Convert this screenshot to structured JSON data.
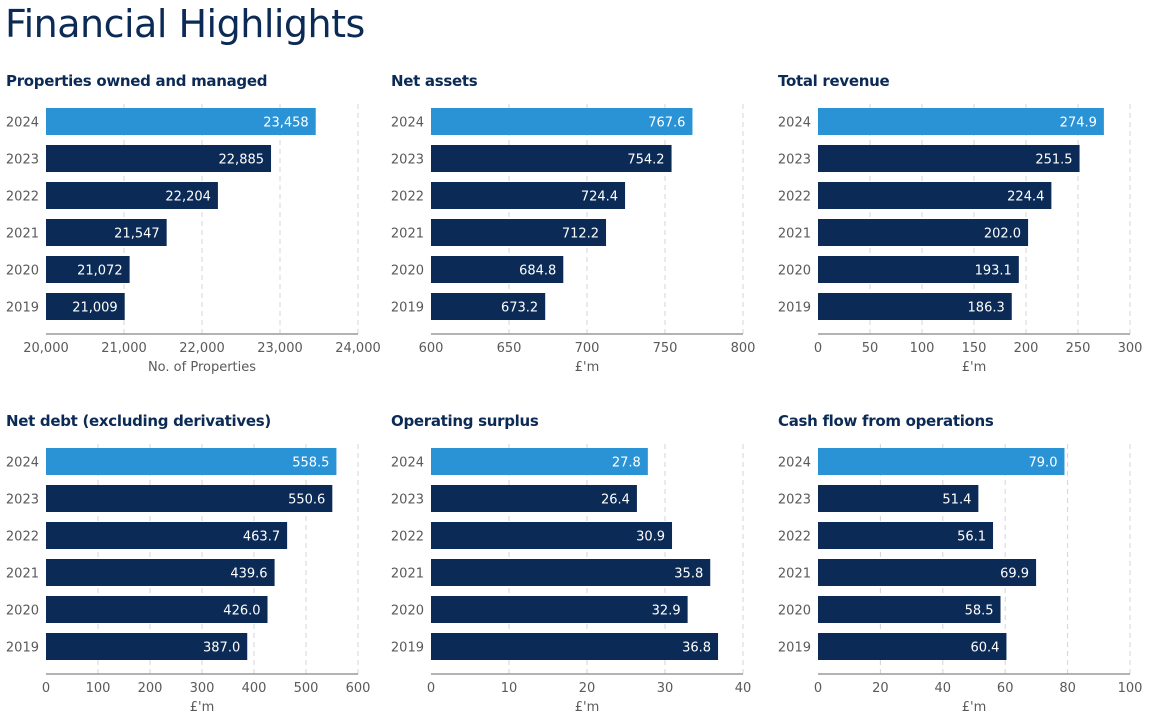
{
  "page_title": "Financial Highlights",
  "colors": {
    "highlight": "#2a93d5",
    "bar": "#0b2a55",
    "grid": "#d4d4d4",
    "axis": "#9a9a9a",
    "label": "#ffffff"
  },
  "chart_data": [
    {
      "type": "bar",
      "orientation": "horizontal",
      "title": "Properties owned and managed",
      "categories": [
        "2024",
        "2023",
        "2022",
        "2021",
        "2020",
        "2019"
      ],
      "values": [
        23458,
        22885,
        22204,
        21547,
        21072,
        21009
      ],
      "value_labels": [
        "23,458",
        "22,885",
        "22,204",
        "21,547",
        "21,072",
        "21,009"
      ],
      "xlim": [
        20000,
        24000
      ],
      "ticks": [
        20000,
        21000,
        22000,
        23000,
        24000
      ],
      "tick_labels": [
        "20,000",
        "21,000",
        "22,000",
        "23,000",
        "24,000"
      ],
      "xlabel": "No. of Properties",
      "grid": "vertical dashed",
      "highlight_category": "2024"
    },
    {
      "type": "bar",
      "orientation": "horizontal",
      "title": "Net assets",
      "categories": [
        "2024",
        "2023",
        "2022",
        "2021",
        "2020",
        "2019"
      ],
      "values": [
        767.6,
        754.2,
        724.4,
        712.2,
        684.8,
        673.2
      ],
      "value_labels": [
        "767.6",
        "754.2",
        "724.4",
        "712.2",
        "684.8",
        "673.2"
      ],
      "xlim": [
        600,
        800
      ],
      "ticks": [
        600,
        650,
        700,
        750,
        800
      ],
      "tick_labels": [
        "600",
        "650",
        "700",
        "750",
        "800"
      ],
      "xlabel": "£'m",
      "grid": "vertical dashed",
      "highlight_category": "2024"
    },
    {
      "type": "bar",
      "orientation": "horizontal",
      "title": "Total revenue",
      "categories": [
        "2024",
        "2023",
        "2022",
        "2021",
        "2020",
        "2019"
      ],
      "values": [
        274.9,
        251.5,
        224.4,
        202.0,
        193.1,
        186.3
      ],
      "value_labels": [
        "274.9",
        "251.5",
        "224.4",
        "202.0",
        "193.1",
        "186.3"
      ],
      "xlim": [
        0,
        300
      ],
      "ticks": [
        0,
        50,
        100,
        150,
        200,
        250,
        300
      ],
      "tick_labels": [
        "0",
        "50",
        "100",
        "150",
        "200",
        "250",
        "300"
      ],
      "xlabel": "£'m",
      "grid": "vertical dashed",
      "highlight_category": "2024"
    },
    {
      "type": "bar",
      "orientation": "horizontal",
      "title": "Net debt (excluding derivatives)",
      "categories": [
        "2024",
        "2023",
        "2022",
        "2021",
        "2020",
        "2019"
      ],
      "values": [
        558.5,
        550.6,
        463.7,
        439.6,
        426.0,
        387.0
      ],
      "value_labels": [
        "558.5",
        "550.6",
        "463.7",
        "439.6",
        "426.0",
        "387.0"
      ],
      "xlim": [
        0,
        600
      ],
      "ticks": [
        0,
        100,
        200,
        300,
        400,
        500,
        600
      ],
      "tick_labels": [
        "0",
        "100",
        "200",
        "300",
        "400",
        "500",
        "600"
      ],
      "xlabel": "£'m",
      "grid": "vertical dashed",
      "highlight_category": "2024"
    },
    {
      "type": "bar",
      "orientation": "horizontal",
      "title": "Operating surplus",
      "categories": [
        "2024",
        "2023",
        "2022",
        "2021",
        "2020",
        "2019"
      ],
      "values": [
        27.8,
        26.4,
        30.9,
        35.8,
        32.9,
        36.8
      ],
      "value_labels": [
        "27.8",
        "26.4",
        "30.9",
        "35.8",
        "32.9",
        "36.8"
      ],
      "xlim": [
        0,
        40
      ],
      "ticks": [
        0,
        10,
        20,
        30,
        40
      ],
      "tick_labels": [
        "0",
        "10",
        "20",
        "30",
        "40"
      ],
      "xlabel": "£'m",
      "grid": "vertical dashed",
      "highlight_category": "2024"
    },
    {
      "type": "bar",
      "orientation": "horizontal",
      "title": "Cash flow from operations",
      "categories": [
        "2024",
        "2023",
        "2022",
        "2021",
        "2020",
        "2019"
      ],
      "values": [
        79.0,
        51.4,
        56.1,
        69.9,
        58.5,
        60.4
      ],
      "value_labels": [
        "79.0",
        "51.4",
        "56.1",
        "69.9",
        "58.5",
        "60.4"
      ],
      "xlim": [
        0,
        100
      ],
      "ticks": [
        0,
        20,
        40,
        60,
        80,
        100
      ],
      "tick_labels": [
        "0",
        "20",
        "40",
        "60",
        "80",
        "100"
      ],
      "xlabel": "£'m",
      "grid": "vertical dashed",
      "highlight_category": "2024"
    }
  ]
}
